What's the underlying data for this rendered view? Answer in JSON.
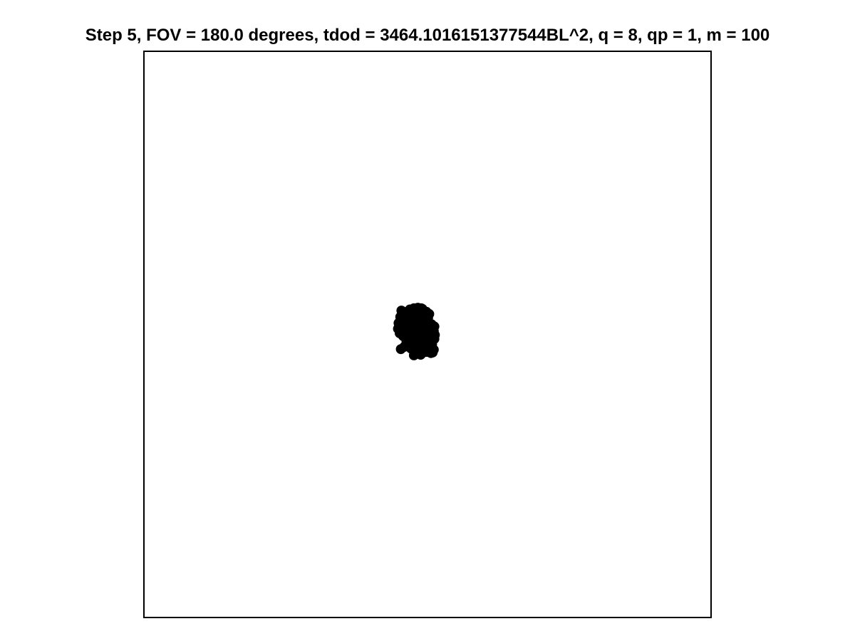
{
  "chart_data": {
    "type": "scatter",
    "title": "Step 5, FOV = 180.0 degrees, tdod = 3464.1016151377544BL^2, q = 8, qp = 1, m = 100",
    "xlabel": "",
    "ylabel": "",
    "xlim": [
      -50,
      50
    ],
    "ylim": [
      -50,
      50
    ],
    "grid": false,
    "axes_visible": false,
    "marker_color": "#000000",
    "points": [
      [
        -4.6,
        4.2
      ],
      [
        -3.9,
        3.6
      ],
      [
        -3.1,
        4.4
      ],
      [
        -2.4,
        4.6
      ],
      [
        -1.7,
        4.7
      ],
      [
        -0.9,
        4.5
      ],
      [
        -0.2,
        4.0
      ],
      [
        0.3,
        3.6
      ],
      [
        -4.8,
        3.1
      ],
      [
        -4.2,
        2.9
      ],
      [
        -3.5,
        2.7
      ],
      [
        -2.9,
        2.9
      ],
      [
        -2.1,
        3.1
      ],
      [
        -1.3,
        3.2
      ],
      [
        -0.6,
        2.7
      ],
      [
        0.1,
        2.9
      ],
      [
        -5.1,
        2.0
      ],
      [
        -4.4,
        1.6
      ],
      [
        -3.8,
        1.9
      ],
      [
        -3.0,
        1.4
      ],
      [
        -2.4,
        2.0
      ],
      [
        -1.8,
        1.5
      ],
      [
        -1.0,
        1.1
      ],
      [
        -0.4,
        0.6
      ],
      [
        0.4,
        0.8
      ],
      [
        1.0,
        1.2
      ],
      [
        -5.2,
        1.0
      ],
      [
        -4.6,
        0.5
      ],
      [
        -3.9,
        0.9
      ],
      [
        -3.3,
        0.4
      ],
      [
        -2.6,
        0.6
      ],
      [
        -1.9,
        0.3
      ],
      [
        -1.2,
        -0.2
      ],
      [
        -0.6,
        0.1
      ],
      [
        0.1,
        -0.3
      ],
      [
        0.7,
        0.2
      ],
      [
        1.3,
        -0.1
      ],
      [
        -4.3,
        -0.3
      ],
      [
        -3.6,
        -0.6
      ],
      [
        -2.8,
        -0.9
      ],
      [
        -2.2,
        -0.5
      ],
      [
        -1.5,
        -1.0
      ],
      [
        -0.8,
        -1.1
      ],
      [
        -0.1,
        -0.7
      ],
      [
        0.5,
        -1.2
      ],
      [
        1.2,
        -0.8
      ],
      [
        -3.3,
        -1.7
      ],
      [
        -2.6,
        -2.0
      ],
      [
        -1.9,
        -2.3
      ],
      [
        -1.1,
        -2.0
      ],
      [
        -0.4,
        -2.4
      ],
      [
        0.3,
        -2.2
      ],
      [
        0.9,
        -2.5
      ],
      [
        -4.7,
        -2.6
      ],
      [
        -4.1,
        -2.2
      ],
      [
        -1.6,
        -3.0
      ],
      [
        -0.9,
        -3.3
      ],
      [
        -0.1,
        -3.1
      ],
      [
        0.6,
        -3.3
      ],
      [
        -2.4,
        -3.7
      ],
      [
        -1.3,
        -3.2
      ],
      [
        -3.7,
        -1.2
      ],
      [
        -2.0,
        4.2
      ],
      [
        -1.4,
        4.0
      ],
      [
        -0.6,
        3.8
      ],
      [
        -4.0,
        2.3
      ],
      [
        -3.2,
        3.4
      ],
      [
        -2.7,
        1.1
      ],
      [
        -1.5,
        2.3
      ],
      [
        -0.9,
        1.9
      ],
      [
        -0.2,
        1.7
      ],
      [
        0.7,
        1.8
      ],
      [
        1.1,
        0.6
      ],
      [
        -5.0,
        1.5
      ],
      [
        -4.9,
        0.2
      ],
      [
        -3.0,
        -0.2
      ],
      [
        -2.3,
        -1.5
      ],
      [
        -1.7,
        0.8
      ],
      [
        -0.7,
        -0.4
      ],
      [
        0.2,
        0.4
      ],
      [
        0.8,
        -1.8
      ],
      [
        1.1,
        -2.7
      ],
      [
        -3.4,
        2.2
      ],
      [
        -2.5,
        3.8
      ],
      [
        -1.1,
        4.6
      ],
      [
        -3.6,
        4.0
      ],
      [
        -4.4,
        3.7
      ],
      [
        -0.3,
        -1.6
      ],
      [
        -1.8,
        -2.8
      ],
      [
        -2.9,
        -2.5
      ],
      [
        0.9,
        -3.2
      ],
      [
        -1.2,
        -3.6
      ],
      [
        0.0,
        1.2
      ],
      [
        -0.5,
        3.4
      ],
      [
        -2.2,
        2.5
      ],
      [
        -3.8,
        -0.2
      ],
      [
        1.2,
        1.4
      ],
      [
        0.4,
        -2.8
      ],
      [
        -2.0,
        -0.8
      ],
      [
        -4.2,
        1.2
      ]
    ]
  }
}
